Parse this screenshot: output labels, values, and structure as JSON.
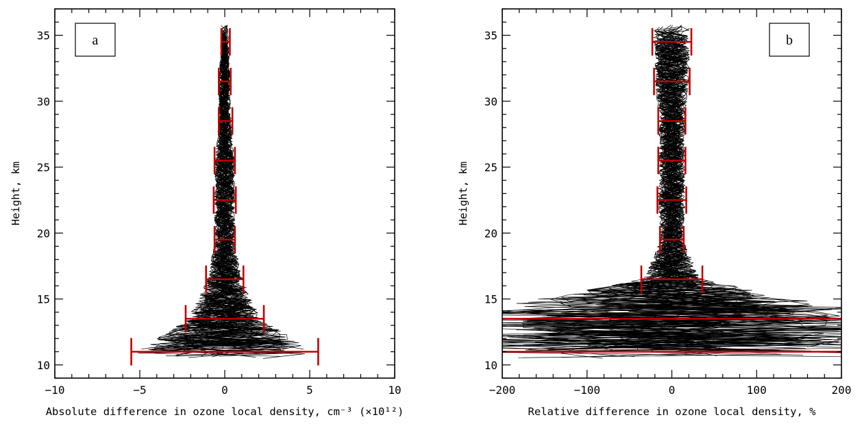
{
  "chart_data": [
    {
      "type": "line",
      "panel_label": "a",
      "xlabel": "Absolute difference in ozone local density, cm⁻³ (×10¹²)",
      "ylabel": "Height, km",
      "xlim": [
        -10,
        10
      ],
      "ylim": [
        9,
        37
      ],
      "xticks": [
        -10,
        -5,
        0,
        5,
        10
      ],
      "yticks": [
        10,
        15,
        20,
        25,
        30,
        35
      ],
      "series": [
        {
          "kind": "error-bars",
          "color": "#c00000",
          "points": [
            {
              "y": 11.0,
              "center": 0.0,
              "half_width": 5.5
            },
            {
              "y": 13.5,
              "center": 0.0,
              "half_width": 2.3
            },
            {
              "y": 16.5,
              "center": 0.0,
              "half_width": 1.1
            },
            {
              "y": 19.5,
              "center": 0.0,
              "half_width": 0.6
            },
            {
              "y": 22.5,
              "center": 0.0,
              "half_width": 0.65
            },
            {
              "y": 25.5,
              "center": 0.0,
              "half_width": 0.6
            },
            {
              "y": 28.5,
              "center": 0.05,
              "half_width": 0.4
            },
            {
              "y": 31.5,
              "center": 0.0,
              "half_width": 0.35
            },
            {
              "y": 34.5,
              "center": 0.05,
              "half_width": 0.25
            }
          ]
        }
      ],
      "profiles": {
        "count": 45,
        "color": "#000000",
        "y_top": 35.8,
        "y_bottom": 10.4
      }
    },
    {
      "type": "line",
      "panel_label": "b",
      "xlabel": "Relative difference in ozone local density, %",
      "ylabel": "Height, km",
      "xlim": [
        -200,
        200
      ],
      "ylim": [
        9,
        37
      ],
      "xticks": [
        -200,
        -100,
        0,
        100,
        200
      ],
      "yticks": [
        10,
        15,
        20,
        25,
        30,
        35
      ],
      "series": [
        {
          "kind": "error-bars",
          "color": "#c00000",
          "points": [
            {
              "y": 11.0,
              "center": 0,
              "half_width": 300
            },
            {
              "y": 13.5,
              "center": 0,
              "half_width": 300
            },
            {
              "y": 16.5,
              "center": 0,
              "half_width": 36
            },
            {
              "y": 19.5,
              "center": 0,
              "half_width": 14
            },
            {
              "y": 22.5,
              "center": 0,
              "half_width": 17
            },
            {
              "y": 25.5,
              "center": 0,
              "half_width": 16
            },
            {
              "y": 28.5,
              "center": 0,
              "half_width": 16
            },
            {
              "y": 31.5,
              "center": 0,
              "half_width": 21
            },
            {
              "y": 34.5,
              "center": 0,
              "half_width": 23
            }
          ]
        }
      ],
      "profiles": {
        "count": 45,
        "color": "#000000",
        "y_top": 35.8,
        "y_bottom": 10.4
      }
    }
  ]
}
